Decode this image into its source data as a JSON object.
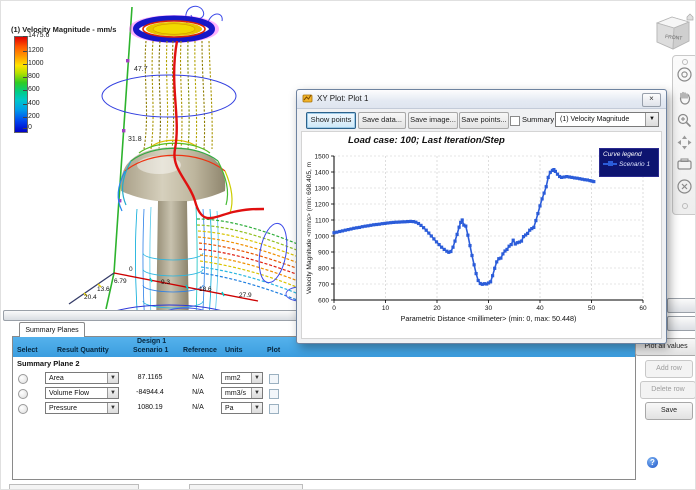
{
  "colorbar": {
    "title": "(1) Velocity Magnitude - mm/s",
    "ticks": [
      "1475.6",
      "1200",
      "1000",
      "800",
      "600",
      "400",
      "200",
      "0"
    ]
  },
  "scene": {
    "green_axis_labels": [
      "47.7",
      "31.8"
    ],
    "red_axis_labels": [
      "0",
      "9.3",
      "18.6",
      "27.9"
    ],
    "left_axis_labels": [
      "6.79",
      "13.6",
      "20.4"
    ]
  },
  "viewcube": {
    "front_label": "FRONT"
  },
  "xy_window": {
    "title": "XY Plot: Plot 1",
    "close_glyph": "×",
    "buttons": {
      "show_points": "Show points",
      "save_data": "Save data...",
      "save_image": "Save image...",
      "save_points": "Save points..."
    },
    "summary_label": "Summary",
    "series_dropdown": "(1) Velocity Magnitude"
  },
  "chart_data": {
    "type": "line",
    "title": "Load case: 100; Last Iteration/Step",
    "xlabel": "Parametric Distance <millimeter> (min: 0, max: 50.448)",
    "ylabel": "Velocity Magnitude <mm/s>  (min: 698.405, m",
    "xlim": [
      0,
      60
    ],
    "ylim": [
      600,
      1500
    ],
    "xticks": [
      0,
      10,
      20,
      30,
      40,
      50,
      60
    ],
    "yticks": [
      600,
      700,
      800,
      900,
      1000,
      1100,
      1200,
      1300,
      1400,
      1500
    ],
    "grid": true,
    "legend_title": "Curve legend",
    "legend_position": "upper right",
    "series": [
      {
        "name": "Scenario 1",
        "color": "#2b5cd9",
        "marker": "square",
        "points": [
          [
            0,
            1020
          ],
          [
            0.55,
            1024
          ],
          [
            1.1,
            1028
          ],
          [
            1.65,
            1032
          ],
          [
            2.2,
            1036
          ],
          [
            2.75,
            1040
          ],
          [
            3.3,
            1044
          ],
          [
            3.85,
            1048
          ],
          [
            4.4,
            1051
          ],
          [
            4.95,
            1054
          ],
          [
            5.5,
            1058
          ],
          [
            6.05,
            1061
          ],
          [
            6.6,
            1064
          ],
          [
            7.15,
            1067
          ],
          [
            7.7,
            1070
          ],
          [
            8.25,
            1072
          ],
          [
            8.8,
            1074
          ],
          [
            9.35,
            1077
          ],
          [
            9.9,
            1079
          ],
          [
            10.45,
            1081
          ],
          [
            11,
            1083
          ],
          [
            11.55,
            1085
          ],
          [
            12.1,
            1086
          ],
          [
            12.65,
            1087
          ],
          [
            13.2,
            1088
          ],
          [
            13.75,
            1089
          ],
          [
            14.3,
            1090
          ],
          [
            14.85,
            1091
          ],
          [
            15.4,
            1090
          ],
          [
            15.9,
            1086
          ],
          [
            16.4,
            1078
          ],
          [
            16.9,
            1066
          ],
          [
            17.4,
            1052
          ],
          [
            17.9,
            1036
          ],
          [
            18.4,
            1018
          ],
          [
            18.9,
            1000
          ],
          [
            19.4,
            982
          ],
          [
            19.9,
            963
          ],
          [
            20.4,
            946
          ],
          [
            20.9,
            930
          ],
          [
            21.4,
            916
          ],
          [
            21.9,
            905
          ],
          [
            22.3,
            898
          ],
          [
            22.7,
            903
          ],
          [
            23.1,
            930
          ],
          [
            23.5,
            968
          ],
          [
            23.9,
            1010
          ],
          [
            24.3,
            1055
          ],
          [
            24.6,
            1085
          ],
          [
            24.9,
            1100
          ],
          [
            25.2,
            1068
          ],
          [
            25.6,
            1062
          ],
          [
            26,
            1005
          ],
          [
            26.4,
            940
          ],
          [
            26.8,
            878
          ],
          [
            27.2,
            820
          ],
          [
            27.6,
            765
          ],
          [
            28,
            722
          ],
          [
            28.4,
            703
          ],
          [
            28.8,
            698
          ],
          [
            29.2,
            702
          ],
          [
            29.6,
            700
          ],
          [
            30,
            706
          ],
          [
            30.4,
            714
          ],
          [
            30.8,
            752
          ],
          [
            31.2,
            798
          ],
          [
            31.6,
            838
          ],
          [
            32,
            858
          ],
          [
            32.4,
            862
          ],
          [
            32.8,
            888
          ],
          [
            33.2,
            906
          ],
          [
            33.6,
            916
          ],
          [
            34,
            936
          ],
          [
            34.4,
            946
          ],
          [
            34.8,
            974
          ],
          [
            35.2,
            950
          ],
          [
            35.6,
            958
          ],
          [
            36,
            962
          ],
          [
            36.4,
            968
          ],
          [
            36.8,
            996
          ],
          [
            37.2,
            1006
          ],
          [
            37.6,
            1016
          ],
          [
            38,
            1036
          ],
          [
            38.4,
            1046
          ],
          [
            38.8,
            1054
          ],
          [
            39.2,
            1096
          ],
          [
            39.6,
            1140
          ],
          [
            40,
            1188
          ],
          [
            40.4,
            1232
          ],
          [
            40.8,
            1268
          ],
          [
            41.2,
            1308
          ],
          [
            41.6,
            1366
          ],
          [
            42,
            1398
          ],
          [
            42.4,
            1410
          ],
          [
            42.7,
            1415
          ],
          [
            43,
            1404
          ],
          [
            43.4,
            1386
          ],
          [
            43.8,
            1372
          ],
          [
            44.2,
            1366
          ],
          [
            44.7,
            1369
          ],
          [
            45.2,
            1371
          ],
          [
            45.7,
            1369
          ],
          [
            46.2,
            1366
          ],
          [
            46.7,
            1363
          ],
          [
            47.2,
            1361
          ],
          [
            47.7,
            1358
          ],
          [
            48.2,
            1355
          ],
          [
            48.7,
            1352
          ],
          [
            49.2,
            1350
          ],
          [
            49.7,
            1346
          ],
          [
            50.1,
            1343
          ],
          [
            50.448,
            1340
          ]
        ]
      }
    ]
  },
  "summary_panel": {
    "tab": "Summary Planes",
    "columns": {
      "select": "Select",
      "result_quantity": "Result Quantity",
      "design": "Design 1",
      "scenario": "Scenario 1",
      "reference": "Reference",
      "units": "Units",
      "plot": "Plot"
    },
    "group_label": "Summary Plane 2",
    "rows": [
      {
        "quantity": "Area",
        "value": "87.1165",
        "reference": "N/A",
        "units": "mm2"
      },
      {
        "quantity": "Volume Flow",
        "value": "-84944.4",
        "reference": "N/A",
        "units": "mm3/s"
      },
      {
        "quantity": "Pressure",
        "value": "1080.19",
        "reference": "N/A",
        "units": "Pa"
      }
    ],
    "buttons": {
      "plot_all": "Plot all values",
      "add_row": "Add row",
      "delete_row": "Delete row",
      "save": "Save"
    }
  }
}
